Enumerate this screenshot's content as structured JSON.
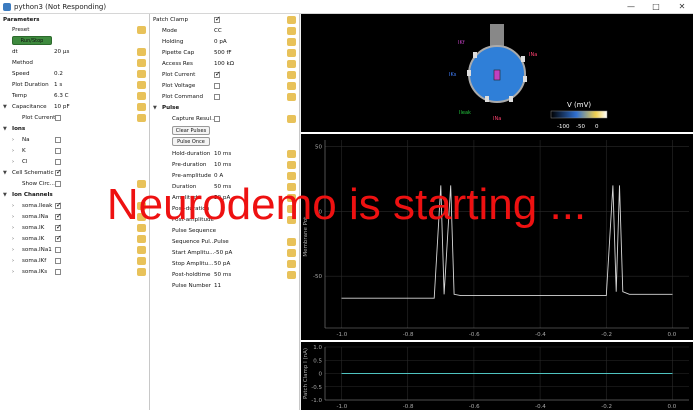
{
  "window": {
    "title": "python3 (Not Responding)",
    "controls": [
      "—",
      "□",
      "✕"
    ]
  },
  "left_panel": {
    "parameters": "Parameters",
    "preset": "Preset",
    "run_stop": "Run/Stop",
    "dt_label": "dt",
    "dt_value": "20 µs",
    "method_label": "Method",
    "speed_label": "Speed",
    "speed_value": "0.2",
    "plot_duration_label": "Plot Duration",
    "plot_duration_value": "1 s",
    "temp_label": "Temp",
    "temp_value": "6.3 C",
    "capacitance_label": "Capacitance",
    "capacitance_value": "10 pF",
    "plot_current_label": "Plot Current",
    "ions": "Ions",
    "ion_na": "Na",
    "ion_k": "K",
    "ion_cl": "Cl",
    "cell_schematic": "Cell Schematic",
    "show_circ": "Show Circ...",
    "ion_channels": "Ion Channels",
    "ch1": "soma.Ileak",
    "ch2": "soma.INa",
    "ch3": "soma.IK",
    "ch4": "soma.IK",
    "ch5": "soma.INa1",
    "ch6": "soma.IKf",
    "ch7": "soma.IKs"
  },
  "mid_panel": {
    "patch_clamp": "Patch Clamp",
    "mode_label": "Mode",
    "mode_value": "CC",
    "holding_label": "Holding",
    "holding_value": "0 pA",
    "pipette_cap_label": "Pipette Cap",
    "pipette_cap_value": "500 fF",
    "access_res_label": "Access Res",
    "access_res_value": "100 kΩ",
    "plot_current_label": "Plot Current",
    "plot_voltage_label": "Plot Voltage",
    "plot_command_label": "Plot Command",
    "pulse": "Pulse",
    "capture_result": "Capture Resul...",
    "clear_pulses": "Clear Pulses",
    "pulse_once": "Pulse Once",
    "hold_duration_label": "Hold-duration",
    "hold_duration_value": "10 ms",
    "pre_duration_label": "Pre-duration",
    "pre_duration_value": "10 ms",
    "pre_amplitude_label": "Pre-amplitude",
    "pre_amplitude_value": "0 A",
    "duration_label": "Duration",
    "duration_value": "50 ms",
    "amplitude_label": "Amplitude",
    "amplitude_value": "50 pA",
    "post_duration_label": "Post-duration",
    "post_amplitude_label": "Post-amplitude",
    "pulse_sequence_label": "Pulse Sequence",
    "sequence_pul_label": "Sequence Pul...",
    "sequence_pul_value": "Pulse",
    "start_amplitu_label": "Start Amplitu...",
    "start_amplitu_value": "-50 pA",
    "stop_amplitu_label": "Stop Amplitu...",
    "stop_amplitu_value": "50 pA",
    "post_holdtime_label": "Post-holdtime",
    "post_holdtime_value": "50 ms",
    "pulse_number_label": "Pulse Number",
    "pulse_number_value": "11"
  },
  "cell_view": {
    "labels": [
      "IKf",
      "INa",
      "IKs",
      "Ileak",
      "INa"
    ],
    "colorbar_title": "V (mV)",
    "colorbar_ticks": [
      "-100",
      "-50",
      "0"
    ],
    "colors": {
      "cell": "#2f7fd8",
      "outline": "#aaaaaa",
      "ikf": "#c040c0",
      "ileak": "#22c33c",
      "ina": "#ff4070"
    }
  },
  "overlay_text": "Neurodemo is starting ...",
  "chart_data": [
    {
      "type": "line",
      "ylabel": "Membrane Pot...",
      "xlim": [
        -1.05,
        0.05
      ],
      "ylim": [
        -90,
        55
      ],
      "yticks": [
        "50",
        "0",
        "-50"
      ],
      "xticks": [
        "-1.0",
        "-0.8",
        "-0.6",
        "-0.4",
        "-0.2",
        "0.0"
      ],
      "series": [
        {
          "x": [
            -1.0,
            -0.72,
            -0.7,
            -0.69,
            -0.67,
            -0.66,
            -0.64,
            -0.2,
            -0.18,
            -0.17,
            -0.16,
            -0.15,
            -0.13,
            0.0
          ],
          "y": [
            -67,
            -67,
            20,
            -64,
            20,
            -64,
            -65,
            -65,
            20,
            -62,
            20,
            -62,
            -64,
            -64
          ]
        }
      ]
    },
    {
      "type": "line",
      "ylabel": "Patch Clamp I (nA)",
      "xlim": [
        -1.05,
        0.05
      ],
      "ylim": [
        -1.0,
        1.0
      ],
      "yticks": [
        "1.0",
        "0.5",
        "0",
        "-0.5",
        "-1.0"
      ],
      "xticks": [
        "-1.0",
        "-0.8",
        "-0.6",
        "-0.4",
        "-0.2",
        "0.0"
      ],
      "series": [
        {
          "x": [
            -1.0,
            -0.72,
            -0.65,
            -0.2,
            -0.13,
            0.0
          ],
          "y": [
            0,
            0,
            0,
            0,
            0,
            0
          ]
        }
      ]
    }
  ]
}
